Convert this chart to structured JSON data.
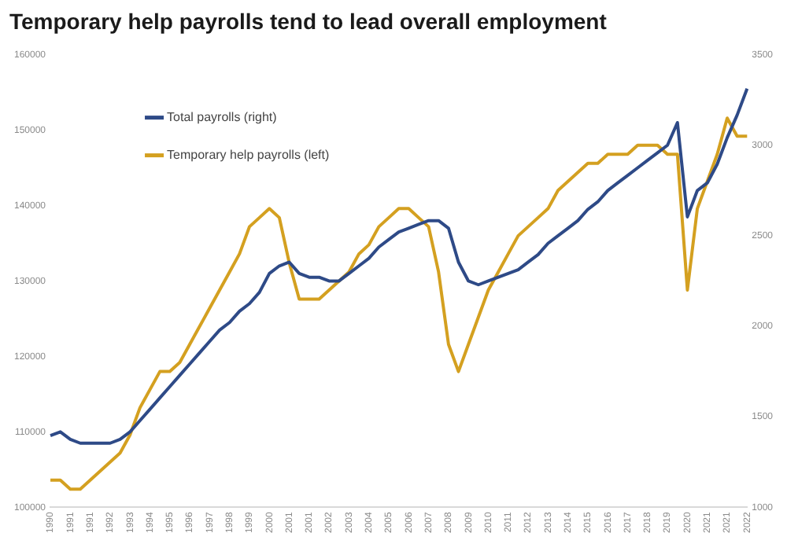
{
  "chart_data": {
    "type": "line",
    "title": "Temporary help payrolls tend to lead overall employment",
    "categories": [
      "1990",
      null,
      "1991",
      null,
      "1991",
      null,
      "1992",
      null,
      "1993",
      null,
      "1994",
      null,
      "1995",
      null,
      "1996",
      null,
      "1997",
      null,
      "1998",
      null,
      "1999",
      null,
      "2000",
      null,
      "2001",
      null,
      "2001",
      null,
      "2002",
      null,
      "2003",
      null,
      "2004",
      null,
      "2005",
      null,
      "2006",
      null,
      "2007",
      null,
      "2008",
      null,
      "2009",
      null,
      "2010",
      null,
      "2011",
      null,
      "2012",
      null,
      "2013",
      null,
      "2014",
      null,
      "2015",
      null,
      "2016",
      null,
      "2017",
      null,
      "2018",
      null,
      "2019",
      null,
      "2020",
      null,
      "2021",
      null,
      "2021",
      null,
      "2022"
    ],
    "series": [
      {
        "name": "Total payrolls (right)",
        "color": "#2e4a87",
        "values": [
          109500,
          110000,
          109000,
          108500,
          108500,
          108500,
          108500,
          109000,
          110000,
          111500,
          113000,
          114500,
          116000,
          117500,
          119000,
          120500,
          122000,
          123500,
          124500,
          126000,
          127000,
          128500,
          131000,
          132000,
          132500,
          131000,
          130500,
          130500,
          130000,
          130000,
          131000,
          132000,
          133000,
          134500,
          135500,
          136500,
          137000,
          137500,
          138000,
          138000,
          137000,
          132500,
          130000,
          129500,
          130000,
          130500,
          131000,
          131500,
          132500,
          133500,
          135000,
          136000,
          137000,
          138000,
          139500,
          140500,
          142000,
          143000,
          144000,
          145000,
          146000,
          147000,
          148000,
          151000,
          138500,
          142000,
          143000,
          145500,
          149000,
          152000,
          155500
        ]
      },
      {
        "name": "Temporary help payrolls (left)",
        "color": "#d4a020",
        "axis": "y2",
        "values": [
          1150,
          1150,
          1100,
          1100,
          1150,
          1200,
          1250,
          1300,
          1400,
          1550,
          1650,
          1750,
          1750,
          1800,
          1900,
          2000,
          2100,
          2200,
          2300,
          2400,
          2550,
          2600,
          2650,
          2600,
          2350,
          2150,
          2150,
          2150,
          2200,
          2250,
          2300,
          2400,
          2450,
          2550,
          2600,
          2650,
          2650,
          2600,
          2550,
          2300,
          1900,
          1750,
          1900,
          2050,
          2200,
          2300,
          2400,
          2500,
          2550,
          2600,
          2650,
          2750,
          2800,
          2850,
          2900,
          2900,
          2950,
          2950,
          2950,
          3000,
          3000,
          3000,
          2950,
          2950,
          2200,
          2650,
          2800,
          2950,
          3150,
          3050,
          3050
        ]
      }
    ],
    "ylim": [
      100000,
      160000
    ],
    "yticks": [
      100000,
      110000,
      120000,
      130000,
      140000,
      150000,
      160000
    ],
    "y2lim": [
      1000,
      3500
    ],
    "y2ticks": [
      1000,
      1500,
      2000,
      2500,
      3000,
      3500
    ],
    "legend": "top left",
    "marker": "none",
    "grid": false
  }
}
